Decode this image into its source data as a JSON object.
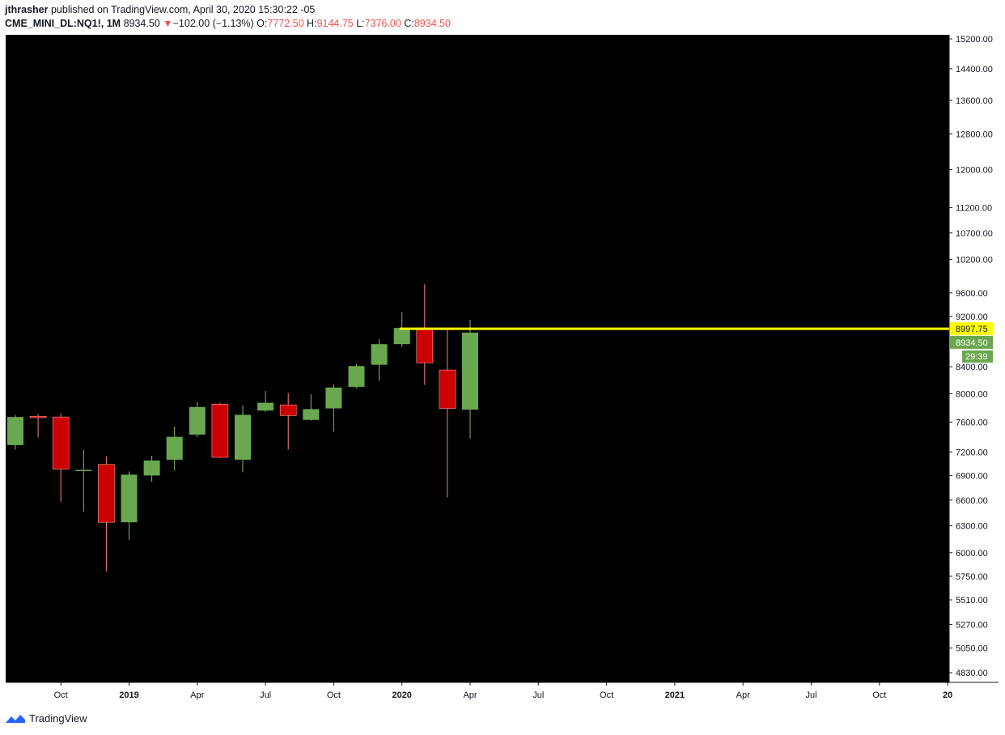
{
  "header": {
    "user": "jthrasher",
    "published": "published on TradingView.com, April 30, 2020 15:30:22 -05",
    "symbol": "CME_MINI_DL:NQ1!, 1M",
    "last": "8934.50",
    "change_arrow": "▼",
    "change": "−102.00 (−1.13%)",
    "o_label": "O:",
    "o_val": "7772.50",
    "h_label": "H:",
    "h_val": "9144.75",
    "l_label": "L:",
    "l_val": "7376.00",
    "c_label": "C:",
    "c_val": "8934.50"
  },
  "footer": {
    "brand": "TradingView"
  },
  "colors": {
    "up": "#6aa84f",
    "down": "#cc0000",
    "line": "#ffff00",
    "bg": "#000000"
  },
  "chart_data": {
    "type": "candlestick",
    "y_ticks": [
      "15200.00",
      "14400.00",
      "13600.00",
      "12800.00",
      "12000.00",
      "11200.00",
      "10700.00",
      "10200.00",
      "9600.00",
      "9200.00",
      "8400.00",
      "8000.00",
      "7600.00",
      "7200.00",
      "6900.00",
      "6600.00",
      "6300.00",
      "6000.00",
      "5750.00",
      "5510.00",
      "5270.00",
      "5050.00",
      "4830.00"
    ],
    "x_ticks": [
      "Oct",
      "2019",
      "Apr",
      "Jul",
      "Oct",
      "2020",
      "Apr",
      "Jul",
      "Oct",
      "2021",
      "Apr",
      "Jul",
      "Oct",
      "20"
    ],
    "candles": [
      {
        "date": "2018-08",
        "open": 7290,
        "high": 7700,
        "low": 7230,
        "close": 7670
      },
      {
        "date": "2018-09",
        "open": 7680,
        "high": 7710,
        "low": 7390,
        "close": 7660
      },
      {
        "date": "2018-10",
        "open": 7670,
        "high": 7720,
        "low": 6580,
        "close": 6980
      },
      {
        "date": "2018-11",
        "open": 6970,
        "high": 7230,
        "low": 6460,
        "close": 6970
      },
      {
        "date": "2018-12",
        "open": 7040,
        "high": 7140,
        "low": 5800,
        "close": 6340
      },
      {
        "date": "2019-01",
        "open": 6340,
        "high": 6950,
        "low": 6140,
        "close": 6910
      },
      {
        "date": "2019-02",
        "open": 6900,
        "high": 7150,
        "low": 6820,
        "close": 7090
      },
      {
        "date": "2019-03",
        "open": 7100,
        "high": 7540,
        "low": 6960,
        "close": 7400
      },
      {
        "date": "2019-04",
        "open": 7430,
        "high": 7880,
        "low": 7400,
        "close": 7810
      },
      {
        "date": "2019-05",
        "open": 7850,
        "high": 7870,
        "low": 7120,
        "close": 7130
      },
      {
        "date": "2019-06",
        "open": 7100,
        "high": 7830,
        "low": 6940,
        "close": 7700
      },
      {
        "date": "2019-07",
        "open": 7760,
        "high": 8040,
        "low": 7740,
        "close": 7870
      },
      {
        "date": "2019-08",
        "open": 7840,
        "high": 8010,
        "low": 7230,
        "close": 7690
      },
      {
        "date": "2019-09",
        "open": 7630,
        "high": 7990,
        "low": 7620,
        "close": 7780
      },
      {
        "date": "2019-10",
        "open": 7790,
        "high": 8140,
        "low": 7470,
        "close": 8090
      },
      {
        "date": "2019-11",
        "open": 8100,
        "high": 8440,
        "low": 8080,
        "close": 8410
      },
      {
        "date": "2019-12",
        "open": 8430,
        "high": 8830,
        "low": 8190,
        "close": 8750
      },
      {
        "date": "2020-01",
        "open": 8750,
        "high": 9270,
        "low": 8700,
        "close": 9010
      },
      {
        "date": "2020-02",
        "open": 9010,
        "high": 9750,
        "low": 8130,
        "close": 8460
      },
      {
        "date": "2020-03",
        "open": 8350,
        "high": 9000,
        "low": 6630,
        "close": 7790
      },
      {
        "date": "2020-04",
        "open": 7772.5,
        "high": 9144.75,
        "low": 7376.0,
        "close": 8934.5
      }
    ],
    "horizontal_line": {
      "value": 8997.75,
      "label": "8997.75",
      "start": "2020-01"
    },
    "last_price_label": "8934.50",
    "countdown_label": "29:39"
  }
}
